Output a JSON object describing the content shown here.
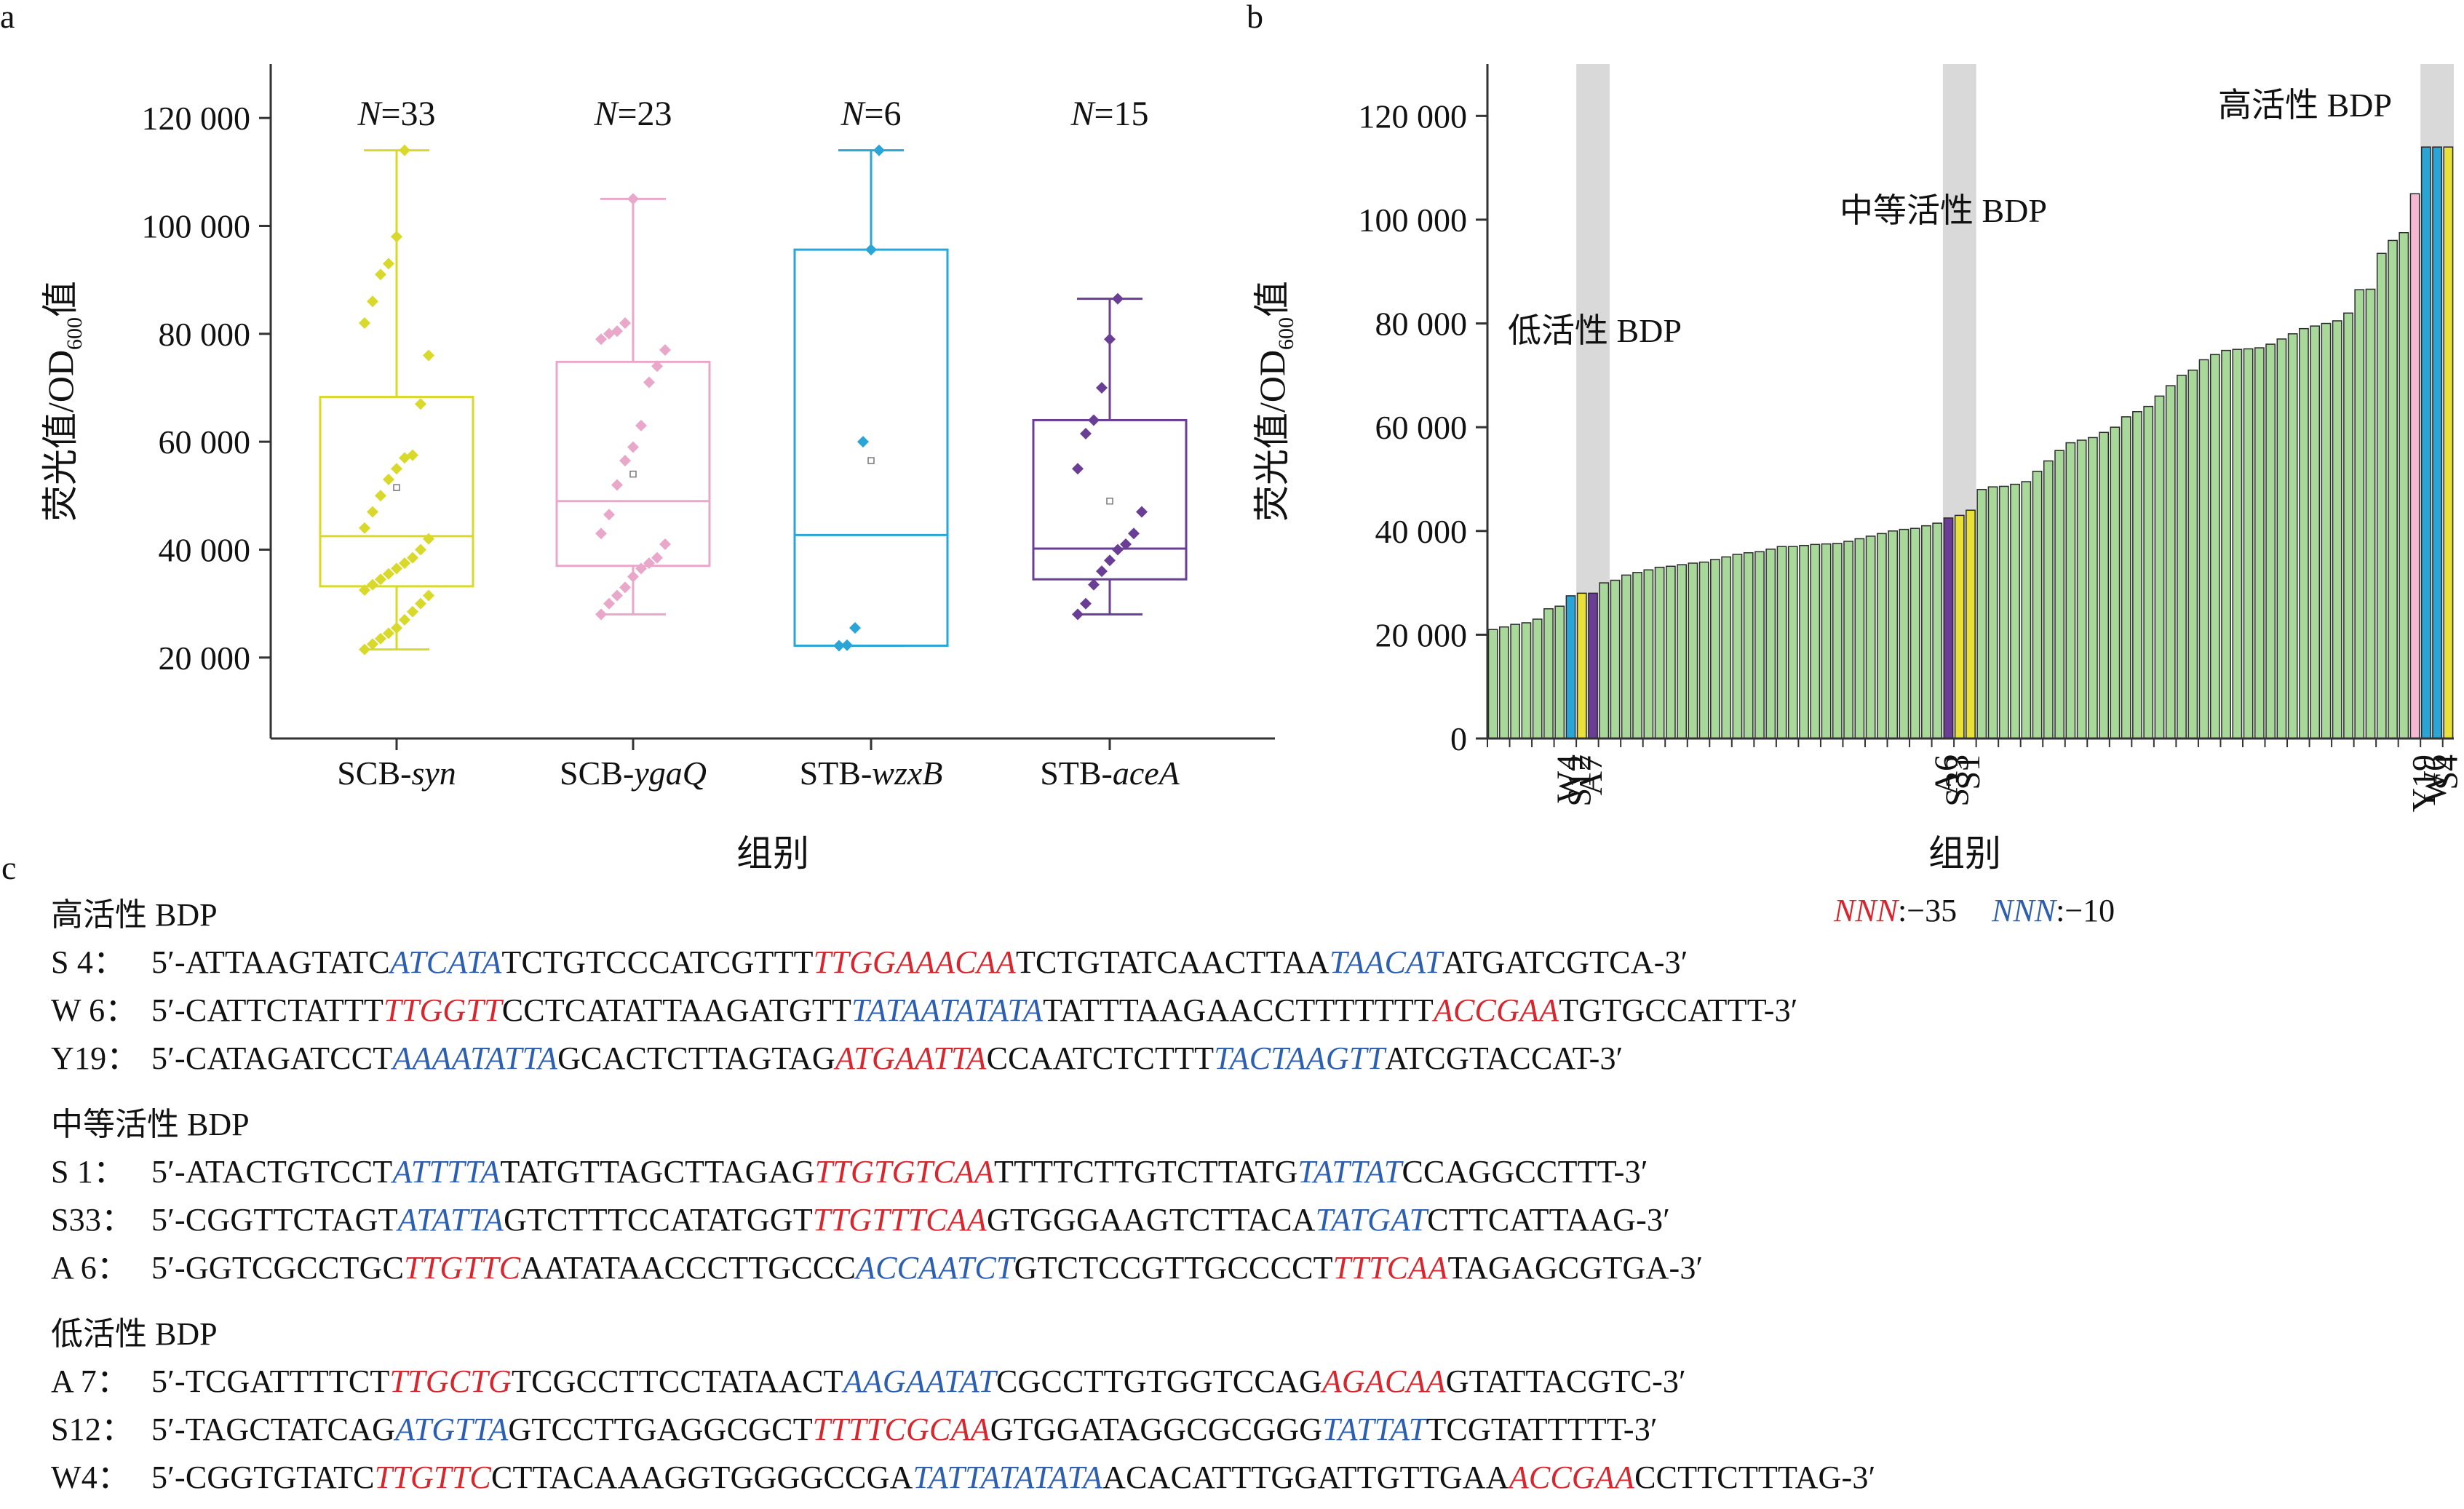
{
  "chart_data": [
    {
      "type": "box",
      "panel_label": "a",
      "ylabel_parts": [
        "荧光值/OD",
        "600",
        "值"
      ],
      "xlabel": "组别",
      "ylim": [
        5000,
        130000
      ],
      "yticks": [
        20000,
        40000,
        60000,
        80000,
        100000,
        120000
      ],
      "ytick_labels": [
        "20 000",
        "40 000",
        "60 000",
        "80 000",
        "100 000",
        "120 000"
      ],
      "categories": [
        {
          "prefix": "SCB-",
          "italic": "syn"
        },
        {
          "prefix": "SCB-",
          "italic": "ygaQ"
        },
        {
          "prefix": "STB-",
          "italic": "wzxB"
        },
        {
          "prefix": "STB-",
          "italic": "aceA"
        }
      ],
      "n_labels": [
        "=33",
        "=23",
        "=6",
        "=15"
      ],
      "n_prefix": "N",
      "colors": [
        "#d9d92b",
        "#e9a8c9",
        "#2aa5d6",
        "#6a3e94"
      ],
      "boxes": [
        {
          "whisker_low": 21500,
          "q1": 33200,
          "median": 42500,
          "q3": 68300,
          "whisker_high": 114000,
          "mean": 51500
        },
        {
          "whisker_low": 28000,
          "q1": 37000,
          "median": 49000,
          "q3": 74800,
          "whisker_high": 105000,
          "mean": 54000
        },
        {
          "whisker_low": 22200,
          "q1": 22200,
          "median": 42700,
          "q3": 95600,
          "whisker_high": 114000,
          "mean": 56500
        },
        {
          "whisker_low": 28000,
          "q1": 34500,
          "median": 40200,
          "q3": 64000,
          "whisker_high": 86500,
          "mean": 49000
        }
      ],
      "points": [
        [
          21500,
          22500,
          23500,
          24500,
          25500,
          27000,
          28500,
          30000,
          31500,
          32500,
          33500,
          34500,
          35500,
          36500,
          37500,
          38500,
          40000,
          42000,
          44000,
          47000,
          50000,
          53000,
          55000,
          57000,
          57500,
          67000,
          76000,
          82000,
          86000,
          91000,
          93000,
          98000,
          114000
        ],
        [
          28000,
          30000,
          31500,
          33000,
          35000,
          36500,
          37500,
          38500,
          41000,
          43000,
          46500,
          52000,
          56500,
          59000,
          63000,
          71000,
          74000,
          77000,
          79000,
          80000,
          80500,
          82000,
          105000
        ],
        [
          22200,
          22300,
          25500,
          60000,
          95600,
          114000
        ],
        [
          28000,
          30000,
          33500,
          36000,
          38000,
          40000,
          41000,
          43000,
          47000,
          55000,
          61500,
          64000,
          70000,
          79000,
          86500
        ]
      ]
    },
    {
      "type": "bar",
      "panel_label": "b",
      "ylabel_parts": [
        "荧光值/OD",
        "600",
        "值"
      ],
      "xlabel": "组别",
      "ylim": [
        0,
        130000
      ],
      "yticks": [
        0,
        20000,
        40000,
        60000,
        80000,
        100000,
        120000
      ],
      "ytick_labels": [
        "0",
        "20 000",
        "40 000",
        "60 000",
        "80 000",
        "100 000",
        "120 000"
      ],
      "values": [
        21000,
        21500,
        22000,
        22300,
        23000,
        25000,
        25500,
        27500,
        28000,
        28000,
        30000,
        30500,
        31500,
        32000,
        32500,
        33000,
        33200,
        33500,
        33800,
        34000,
        34500,
        35000,
        35500,
        35800,
        36000,
        36500,
        37000,
        37000,
        37200,
        37400,
        37500,
        37600,
        38000,
        38500,
        39000,
        39500,
        40000,
        40300,
        40500,
        41000,
        41500,
        42500,
        43000,
        44000,
        48000,
        48500,
        48600,
        49000,
        49500,
        51500,
        53500,
        55500,
        57000,
        57500,
        58000,
        59000,
        60000,
        62000,
        63000,
        64000,
        66000,
        68000,
        70000,
        71000,
        73000,
        74000,
        74800,
        75000,
        75100,
        75300,
        76000,
        77000,
        78000,
        79000,
        79500,
        80000,
        80500,
        82000,
        86500,
        86600,
        93500,
        96000,
        97500,
        105000,
        114000,
        114000,
        114000
      ],
      "highlights": [
        {
          "index": 7,
          "color": "#2aa5d6"
        },
        {
          "index": 8,
          "color": "#e9e13a"
        },
        {
          "index": 9,
          "color": "#6a3e94"
        },
        {
          "index": 41,
          "color": "#6a3e94"
        },
        {
          "index": 42,
          "color": "#e9e13a"
        },
        {
          "index": 43,
          "color": "#e9e13a"
        },
        {
          "index": 83,
          "color": "#f5b8d2"
        },
        {
          "index": 84,
          "color": "#2aa5d6"
        },
        {
          "index": 85,
          "color": "#2aa5d6"
        },
        {
          "index": 86,
          "color": "#e9e13a"
        }
      ],
      "bar_color": "#a8d89a",
      "shade_ranges": [
        [
          8,
          10
        ],
        [
          41,
          43
        ],
        [
          84,
          86
        ]
      ],
      "tick_labels": [
        {
          "label": "W4",
          "index": 7
        },
        {
          "label": "S12",
          "index": 8
        },
        {
          "label": "A7",
          "index": 9
        },
        {
          "label": "A6",
          "index": 41
        },
        {
          "label": "S33",
          "index": 42
        },
        {
          "label": "S1",
          "index": 43
        },
        {
          "label": "Y19",
          "index": 84
        },
        {
          "label": "W6",
          "index": 85
        },
        {
          "label": "S4",
          "index": 86
        }
      ],
      "annotations": [
        "低活性 BDP",
        "中等活性 BDP",
        "高活性 BDP"
      ]
    }
  ],
  "section_c": {
    "panel_label": "c",
    "legend": {
      "red_label": "NNN",
      "red_value": ":−35",
      "blue_label": "NNN",
      "blue_value": ":−10"
    },
    "groups": [
      {
        "title": "高活性 BDP",
        "rows": [
          {
            "label": "S  4：",
            "segments": [
              [
                "n",
                "5′-ATTAAGTATC"
              ],
              [
                "b",
                "ATCATA"
              ],
              [
                "n",
                "TCTGTCCCATCGTTT"
              ],
              [
                "r",
                "TTGGAAACAA"
              ],
              [
                "n",
                "TCTGTATCAACTTAA"
              ],
              [
                "b",
                "TAACAT"
              ],
              [
                "n",
                "ATGATCGTCA-3′"
              ]
            ]
          },
          {
            "label": "W 6：",
            "segments": [
              [
                "n",
                "5′-CATTCTATTT"
              ],
              [
                "r",
                "TTGGTT"
              ],
              [
                "n",
                "CCTCATATTAAGATGTT"
              ],
              [
                "b",
                "TATAATATATA"
              ],
              [
                "n",
                "TATTTAAGAACCTTTTTTT"
              ],
              [
                "r",
                "ACCGAA"
              ],
              [
                "n",
                "TGTGCCATTT-3′"
              ]
            ]
          },
          {
            "label": "Y19：",
            "segments": [
              [
                "n",
                "5′-CATAGATCCT"
              ],
              [
                "b",
                "AAAATATTA"
              ],
              [
                "n",
                "GCACTCTTAGTAG"
              ],
              [
                "r",
                "ATGAATTA"
              ],
              [
                "n",
                "CCAATCTCTTT"
              ],
              [
                "b",
                "TACTAAGTT"
              ],
              [
                "n",
                "ATCGTACCAT-3′"
              ]
            ]
          }
        ]
      },
      {
        "title": "中等活性 BDP",
        "rows": [
          {
            "label": "S  1：",
            "segments": [
              [
                "n",
                "5′-ATACTGTCCT"
              ],
              [
                "b",
                "ATTTTA"
              ],
              [
                "n",
                "TATGTTAGCTTAGAG"
              ],
              [
                "r",
                "TTGTGTCAA"
              ],
              [
                "n",
                "TTTTCTTGTCTTATG"
              ],
              [
                "b",
                "TATTAT"
              ],
              [
                "n",
                "CCAGGCCTTT-3′"
              ]
            ]
          },
          {
            "label": "S33：",
            "segments": [
              [
                "n",
                "5′-CGGTTCTAGT"
              ],
              [
                "b",
                "ATATTA"
              ],
              [
                "n",
                "GTCTTTCCATATGGT"
              ],
              [
                "r",
                "TTGTTTCAA"
              ],
              [
                "n",
                "GTGGGAAGTCTTACA"
              ],
              [
                "b",
                "TATGAT"
              ],
              [
                "n",
                "CTTCATTAAG-3′"
              ]
            ]
          },
          {
            "label": "A 6：",
            "segments": [
              [
                "n",
                "5′-GGTCGCCTGC"
              ],
              [
                "r",
                "TTGTTC"
              ],
              [
                "n",
                "AATATAACCCTTGCCC"
              ],
              [
                "b",
                "ACCAATCT"
              ],
              [
                "n",
                "GTCTCCGTTGCCCCT"
              ],
              [
                "r",
                "TTTCAA"
              ],
              [
                "n",
                "TAGAGCGTGA-3′"
              ]
            ]
          }
        ]
      },
      {
        "title": "低活性 BDP",
        "rows": [
          {
            "label": "A 7：",
            "segments": [
              [
                "n",
                "5′-TCGATTTTCT"
              ],
              [
                "r",
                "TTGCTG"
              ],
              [
                "n",
                "TCGCCTTCCTATAACT"
              ],
              [
                "b",
                "AAGAATAT"
              ],
              [
                "n",
                "CGCCTTGTGGTCCAG"
              ],
              [
                "r",
                "AGACAA"
              ],
              [
                "n",
                "GTATTACGTC-3′"
              ]
            ]
          },
          {
            "label": "S12：",
            "segments": [
              [
                "n",
                "5′-TAGCTATCAG"
              ],
              [
                "b",
                "ATGTTA"
              ],
              [
                "n",
                "GTCCTTGAGGCGCT"
              ],
              [
                "r",
                "TTTTCGCAA"
              ],
              [
                "n",
                "GTGGATAGGCGCGGG"
              ],
              [
                "b",
                "TATTAT"
              ],
              [
                "n",
                "TCGTATTTTT-3′"
              ]
            ]
          },
          {
            "label": "W4：",
            "segments": [
              [
                "n",
                "5′-CGGTGTATC"
              ],
              [
                "r",
                "TTGTTC"
              ],
              [
                "n",
                "CTTACAAAGGTGGGGCCGA"
              ],
              [
                "b",
                "TATTATATATA"
              ],
              [
                "n",
                "ACACATTTGGATTGTTGAA"
              ],
              [
                "r",
                "ACCGAA"
              ],
              [
                "n",
                "CCTTCTTTAG-3′"
              ]
            ]
          }
        ]
      }
    ]
  }
}
